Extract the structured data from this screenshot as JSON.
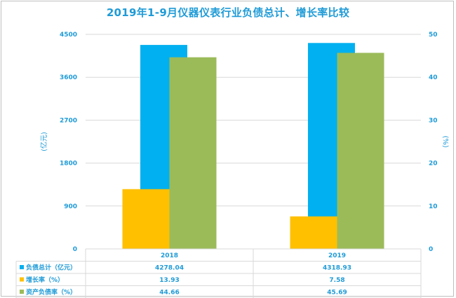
{
  "chart_data": {
    "type": "bar",
    "title": "2019年1-9月仪器仪表行业负债总计、增长率比较",
    "categories": [
      "2018",
      "2019"
    ],
    "ylabel_left": "(亿元)",
    "ylabel_right": "(%)",
    "ylim_left": [
      0,
      4500
    ],
    "ylim_right": [
      0,
      50
    ],
    "yticks_left": [
      "0",
      "900",
      "1800",
      "2700",
      "3600",
      "4500"
    ],
    "yticks_right": [
      "0",
      "10",
      "20",
      "30",
      "40",
      "50"
    ],
    "grid": true,
    "legend_position": "data-table-left",
    "series": [
      {
        "name": "负债总计（亿元）",
        "axis": "left",
        "color": "#00b0f0",
        "values": [
          4278.04,
          4318.93
        ],
        "labels": [
          "4278.04",
          "4318.93"
        ]
      },
      {
        "name": "增长率（%）",
        "axis": "right",
        "color": "#ffc000",
        "values": [
          13.93,
          7.58
        ],
        "labels": [
          "13.93",
          "7.58"
        ]
      },
      {
        "name": "资产负债率（%）",
        "axis": "right",
        "color": "#9bbb59",
        "values": [
          44.66,
          45.69
        ],
        "labels": [
          "44.66",
          "45.69"
        ]
      }
    ]
  }
}
